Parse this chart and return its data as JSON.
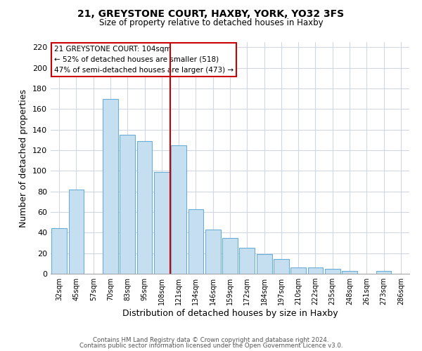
{
  "title": "21, GREYSTONE COURT, HAXBY, YORK, YO32 3FS",
  "subtitle": "Size of property relative to detached houses in Haxby",
  "xlabel": "Distribution of detached houses by size in Haxby",
  "ylabel": "Number of detached properties",
  "bar_labels": [
    "32sqm",
    "45sqm",
    "57sqm",
    "70sqm",
    "83sqm",
    "95sqm",
    "108sqm",
    "121sqm",
    "134sqm",
    "146sqm",
    "159sqm",
    "172sqm",
    "184sqm",
    "197sqm",
    "210sqm",
    "222sqm",
    "235sqm",
    "248sqm",
    "261sqm",
    "273sqm",
    "286sqm"
  ],
  "bar_values": [
    44,
    82,
    0,
    170,
    135,
    129,
    99,
    125,
    63,
    43,
    35,
    25,
    19,
    14,
    6,
    6,
    5,
    3,
    0,
    3,
    0
  ],
  "bar_color": "#c5dff0",
  "bar_edge_color": "#6aaed6",
  "vline_x_index": 6,
  "vline_color": "#cc0000",
  "annotation_line1": "21 GREYSTONE COURT: 104sqm",
  "annotation_line2": "← 52% of detached houses are smaller (518)",
  "annotation_line3": "47% of semi-detached houses are larger (473) →",
  "ylim": [
    0,
    225
  ],
  "yticks": [
    0,
    20,
    40,
    60,
    80,
    100,
    120,
    140,
    160,
    180,
    200,
    220
  ],
  "footer1": "Contains HM Land Registry data © Crown copyright and database right 2024.",
  "footer2": "Contains public sector information licensed under the Open Government Licence v3.0.",
  "bg_color": "#ffffff",
  "grid_color": "#d0d8e8"
}
